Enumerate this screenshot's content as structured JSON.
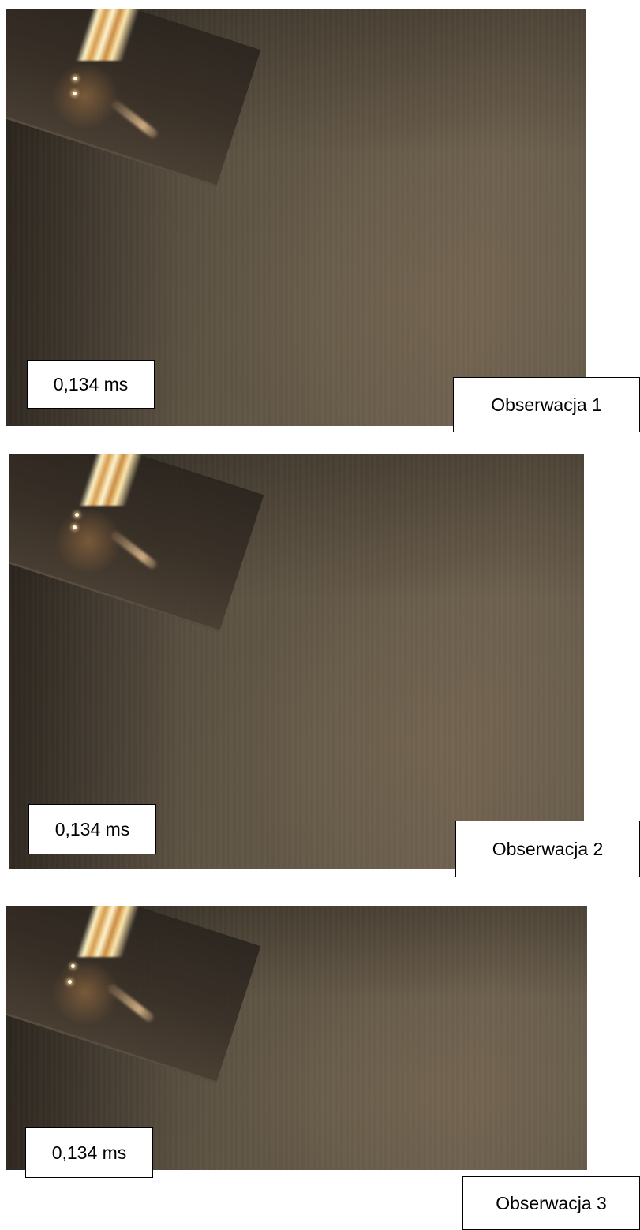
{
  "panels": [
    {
      "time_label": "0,134 ms",
      "observation_label": "Obserwacja 1"
    },
    {
      "time_label": "0,134 ms",
      "observation_label": "Obserwacja 2"
    },
    {
      "time_label": "0,134 ms",
      "observation_label": "Obserwacja 3"
    }
  ]
}
